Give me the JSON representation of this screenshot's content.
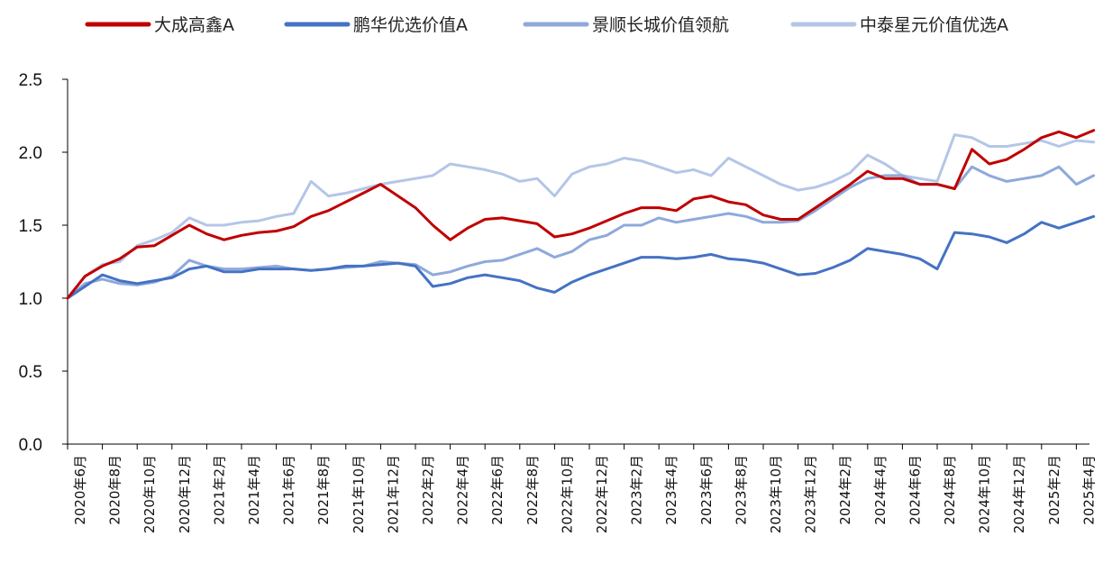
{
  "chart_data": {
    "type": "line",
    "title": "",
    "xlabel": "",
    "ylabel": "",
    "ylim": [
      0,
      2.5
    ],
    "yticks": [
      "0.0",
      "0.5",
      "1.0",
      "1.5",
      "2.0",
      "2.5"
    ],
    "grid": false,
    "legend_position": "top",
    "x_tick_labels": [
      "2020年6月",
      "2020年8月",
      "2020年10月",
      "2020年12月",
      "2021年2月",
      "2021年4月",
      "2021年6月",
      "2021年8月",
      "2021年10月",
      "2021年12月",
      "2022年2月",
      "2022年4月",
      "2022年6月",
      "2022年8月",
      "2022年10月",
      "2022年12月",
      "2023年2月",
      "2023年4月",
      "2023年6月",
      "2023年8月",
      "2023年10月",
      "2023年12月",
      "2024年2月",
      "2024年4月",
      "2024年6月",
      "2024年8月",
      "2024年10月",
      "2024年12月",
      "2025年2月",
      "2025年4月"
    ],
    "x": [
      "2020-06",
      "2020-07",
      "2020-08",
      "2020-09",
      "2020-10",
      "2020-11",
      "2020-12",
      "2021-01",
      "2021-02",
      "2021-03",
      "2021-04",
      "2021-05",
      "2021-06",
      "2021-07",
      "2021-08",
      "2021-09",
      "2021-10",
      "2021-11",
      "2021-12",
      "2022-01",
      "2022-02",
      "2022-03",
      "2022-04",
      "2022-05",
      "2022-06",
      "2022-07",
      "2022-08",
      "2022-09",
      "2022-10",
      "2022-11",
      "2022-12",
      "2023-01",
      "2023-02",
      "2023-03",
      "2023-04",
      "2023-05",
      "2023-06",
      "2023-07",
      "2023-08",
      "2023-09",
      "2023-10",
      "2023-11",
      "2023-12",
      "2024-01",
      "2024-02",
      "2024-03",
      "2024-04",
      "2024-05",
      "2024-06",
      "2024-07",
      "2024-08",
      "2024-09",
      "2024-10",
      "2024-11",
      "2024-12",
      "2025-01",
      "2025-02",
      "2025-03",
      "2025-04",
      "2025-05"
    ],
    "series": [
      {
        "name": "大成高鑫A",
        "color": "#c00000",
        "values": [
          1.0,
          1.15,
          1.22,
          1.27,
          1.35,
          1.36,
          1.43,
          1.5,
          1.44,
          1.4,
          1.43,
          1.45,
          1.46,
          1.49,
          1.56,
          1.6,
          1.66,
          1.72,
          1.78,
          1.7,
          1.62,
          1.5,
          1.4,
          1.48,
          1.54,
          1.55,
          1.53,
          1.51,
          1.42,
          1.44,
          1.48,
          1.53,
          1.58,
          1.62,
          1.62,
          1.6,
          1.68,
          1.7,
          1.66,
          1.64,
          1.57,
          1.54,
          1.54,
          1.62,
          1.7,
          1.78,
          1.87,
          1.82,
          1.82,
          1.78,
          1.78,
          1.75,
          2.02,
          1.92,
          1.95,
          2.02,
          2.1,
          2.14,
          2.1,
          2.15
        ]
      },
      {
        "name": "鹏华优选价值A",
        "color": "#4472c4",
        "values": [
          1.0,
          1.08,
          1.16,
          1.12,
          1.1,
          1.12,
          1.14,
          1.2,
          1.22,
          1.18,
          1.18,
          1.2,
          1.2,
          1.2,
          1.19,
          1.2,
          1.22,
          1.22,
          1.23,
          1.24,
          1.22,
          1.08,
          1.1,
          1.14,
          1.16,
          1.14,
          1.12,
          1.07,
          1.04,
          1.11,
          1.16,
          1.2,
          1.24,
          1.28,
          1.28,
          1.27,
          1.28,
          1.3,
          1.27,
          1.26,
          1.24,
          1.2,
          1.16,
          1.17,
          1.21,
          1.26,
          1.34,
          1.32,
          1.3,
          1.27,
          1.2,
          1.45,
          1.44,
          1.42,
          1.38,
          1.44,
          1.52,
          1.48,
          1.52,
          1.56
        ]
      },
      {
        "name": "景顺长城价值领航",
        "color": "#8ea9db",
        "values": [
          1.0,
          1.1,
          1.13,
          1.1,
          1.09,
          1.11,
          1.15,
          1.26,
          1.22,
          1.2,
          1.2,
          1.21,
          1.22,
          1.2,
          1.19,
          1.2,
          1.21,
          1.22,
          1.25,
          1.24,
          1.23,
          1.16,
          1.18,
          1.22,
          1.25,
          1.26,
          1.3,
          1.34,
          1.28,
          1.32,
          1.4,
          1.43,
          1.5,
          1.5,
          1.55,
          1.52,
          1.54,
          1.56,
          1.58,
          1.56,
          1.52,
          1.52,
          1.53,
          1.6,
          1.68,
          1.76,
          1.82,
          1.84,
          1.84,
          1.78,
          1.78,
          1.75,
          1.9,
          1.84,
          1.8,
          1.82,
          1.84,
          1.9,
          1.78,
          1.84
        ]
      },
      {
        "name": "中泰星元价值优选A",
        "color": "#b4c6e7",
        "values": [
          1.0,
          1.15,
          1.23,
          1.25,
          1.36,
          1.4,
          1.45,
          1.55,
          1.5,
          1.5,
          1.52,
          1.53,
          1.56,
          1.58,
          1.8,
          1.7,
          1.72,
          1.75,
          1.78,
          1.8,
          1.82,
          1.84,
          1.92,
          1.9,
          1.88,
          1.85,
          1.8,
          1.82,
          1.7,
          1.85,
          1.9,
          1.92,
          1.96,
          1.94,
          1.9,
          1.86,
          1.88,
          1.84,
          1.96,
          1.9,
          1.84,
          1.78,
          1.74,
          1.76,
          1.8,
          1.86,
          1.98,
          1.92,
          1.84,
          1.82,
          1.8,
          2.12,
          2.1,
          2.04,
          2.04,
          2.06,
          2.08,
          2.04,
          2.08,
          2.07
        ]
      }
    ]
  }
}
